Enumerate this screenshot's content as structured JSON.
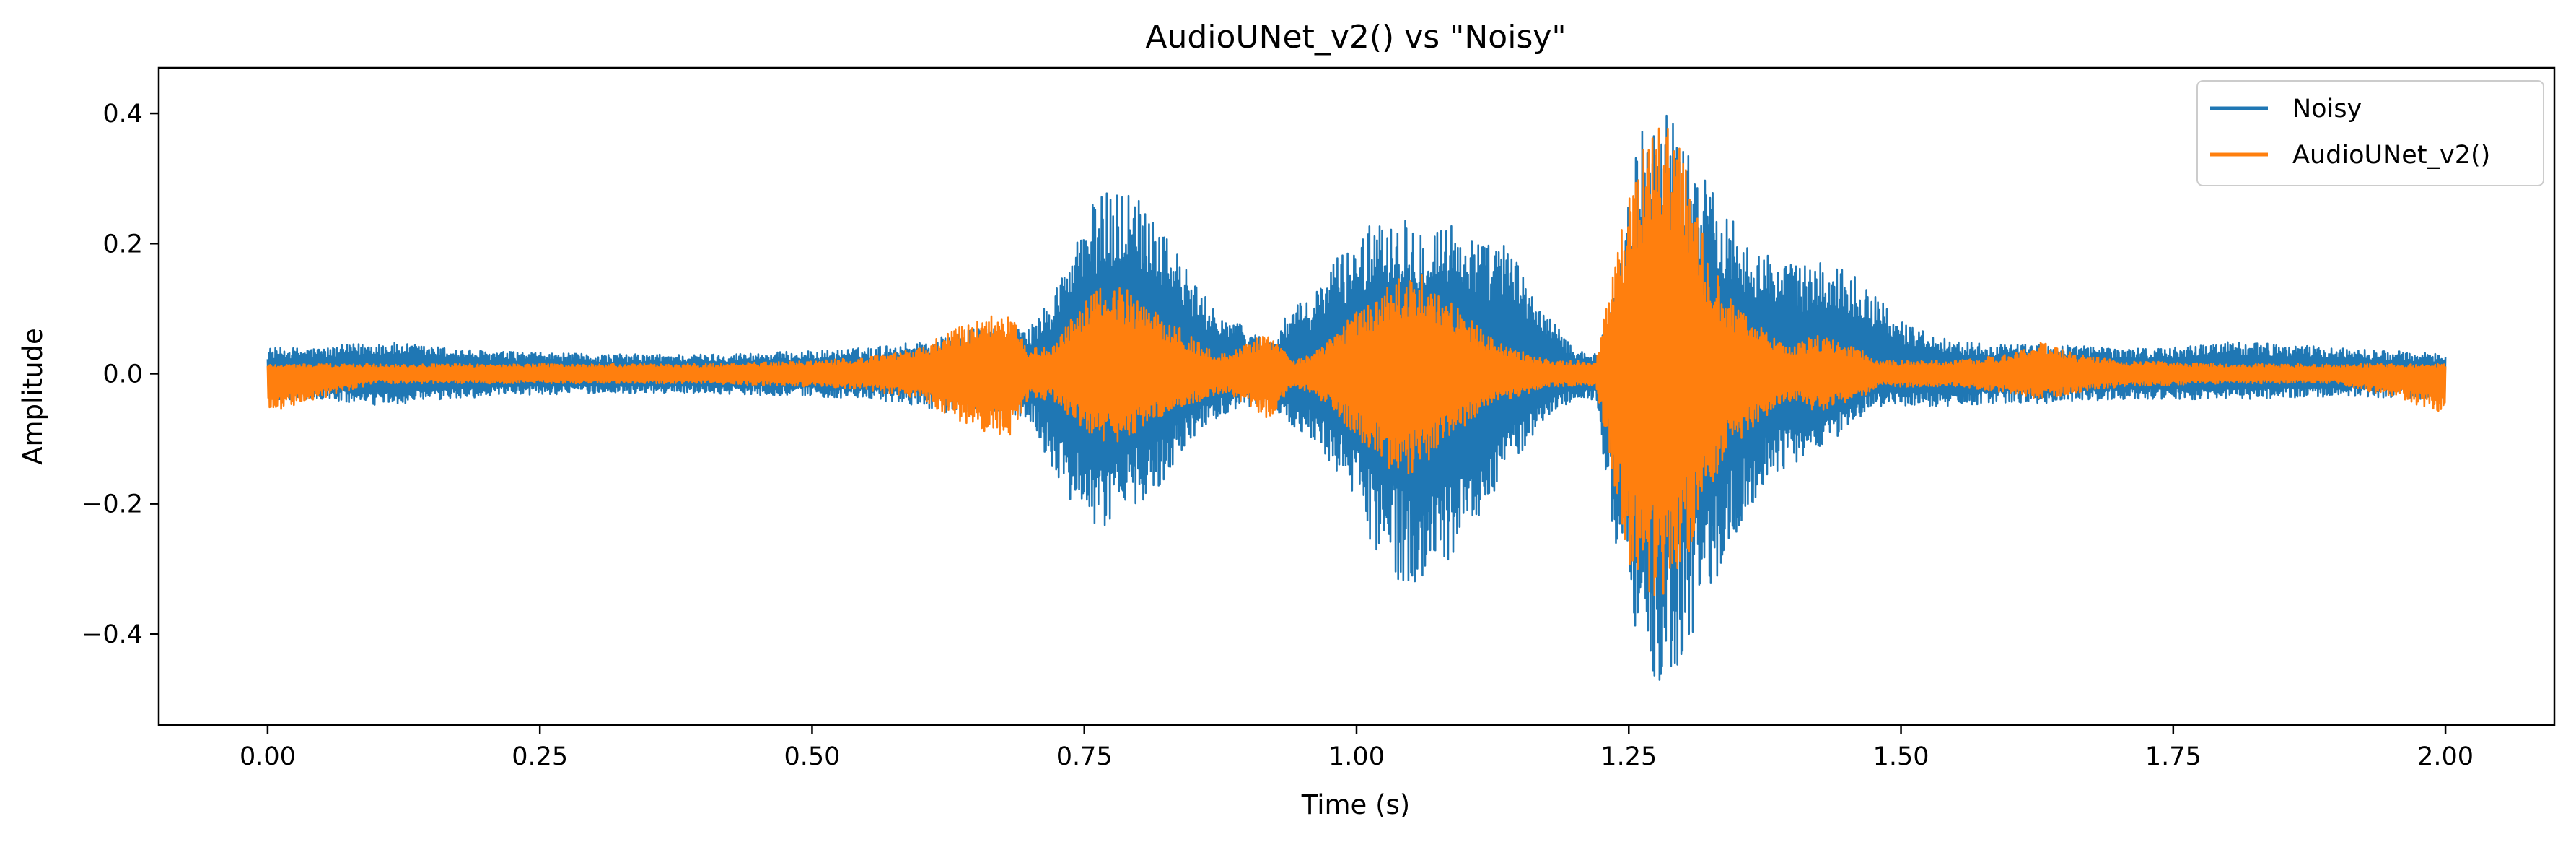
{
  "chart_data": {
    "type": "line",
    "title": "AudioUNet_v2() vs \"Noisy\"",
    "xlabel": "Time (s)",
    "ylabel": "Amplitude",
    "xlim": [
      -0.1,
      2.1
    ],
    "ylim": [
      -0.54,
      0.47
    ],
    "xticks": [
      0.0,
      0.25,
      0.5,
      0.75,
      1.0,
      1.25,
      1.5,
      1.75,
      2.0
    ],
    "xtick_labels": [
      "0.00",
      "0.25",
      "0.50",
      "0.75",
      "1.00",
      "1.25",
      "1.50",
      "1.75",
      "2.00"
    ],
    "yticks": [
      -0.4,
      -0.2,
      0.0,
      0.2,
      0.4
    ],
    "ytick_labels": [
      "−0.4",
      "−0.2",
      "0.0",
      "0.2",
      "0.4"
    ],
    "grid": false,
    "legend_position": "top-right",
    "series": [
      {
        "name": "Noisy",
        "color": "#1f77b4",
        "envelope": {
          "t": [
            0.0,
            0.05,
            0.1,
            0.2,
            0.3,
            0.4,
            0.5,
            0.55,
            0.6,
            0.65,
            0.7,
            0.72,
            0.74,
            0.76,
            0.78,
            0.8,
            0.82,
            0.84,
            0.86,
            0.88,
            0.9,
            0.92,
            0.94,
            0.96,
            0.98,
            1.0,
            1.02,
            1.04,
            1.06,
            1.08,
            1.1,
            1.12,
            1.14,
            1.16,
            1.18,
            1.2,
            1.22,
            1.24,
            1.26,
            1.28,
            1.3,
            1.32,
            1.34,
            1.36,
            1.38,
            1.4,
            1.42,
            1.44,
            1.46,
            1.48,
            1.5,
            1.55,
            1.6,
            1.65,
            1.7,
            1.75,
            1.8,
            1.9,
            2.0
          ],
          "upper": [
            0.04,
            0.04,
            0.05,
            0.035,
            0.03,
            0.03,
            0.035,
            0.04,
            0.05,
            0.07,
            0.07,
            0.12,
            0.2,
            0.27,
            0.29,
            0.28,
            0.25,
            0.17,
            0.12,
            0.09,
            0.07,
            0.05,
            0.1,
            0.12,
            0.18,
            0.2,
            0.25,
            0.25,
            0.23,
            0.24,
            0.22,
            0.2,
            0.2,
            0.13,
            0.08,
            0.04,
            0.03,
            0.15,
            0.38,
            0.42,
            0.37,
            0.3,
            0.25,
            0.22,
            0.18,
            0.17,
            0.17,
            0.17,
            0.15,
            0.12,
            0.08,
            0.05,
            0.045,
            0.045,
            0.04,
            0.04,
            0.05,
            0.04,
            0.03
          ],
          "lower": [
            -0.04,
            -0.04,
            -0.05,
            -0.035,
            -0.03,
            -0.03,
            -0.035,
            -0.04,
            -0.05,
            -0.07,
            -0.07,
            -0.15,
            -0.21,
            -0.24,
            -0.23,
            -0.2,
            -0.17,
            -0.12,
            -0.08,
            -0.06,
            -0.05,
            -0.05,
            -0.08,
            -0.1,
            -0.15,
            -0.2,
            -0.29,
            -0.32,
            -0.33,
            -0.3,
            -0.25,
            -0.2,
            -0.15,
            -0.1,
            -0.06,
            -0.04,
            -0.04,
            -0.32,
            -0.42,
            -0.49,
            -0.44,
            -0.35,
            -0.28,
            -0.22,
            -0.16,
            -0.14,
            -0.12,
            -0.1,
            -0.07,
            -0.05,
            -0.05,
            -0.05,
            -0.045,
            -0.045,
            -0.04,
            -0.04,
            -0.04,
            -0.035,
            -0.04
          ]
        }
      },
      {
        "name": "AudioUNet_v2()",
        "color": "#ff7f0e",
        "envelope": {
          "t": [
            0.0,
            0.1,
            0.2,
            0.3,
            0.4,
            0.5,
            0.55,
            0.6,
            0.63,
            0.66,
            0.68,
            0.7,
            0.72,
            0.74,
            0.76,
            0.78,
            0.8,
            0.82,
            0.84,
            0.86,
            0.88,
            0.9,
            0.92,
            0.94,
            0.96,
            0.98,
            1.0,
            1.02,
            1.04,
            1.06,
            1.08,
            1.1,
            1.12,
            1.14,
            1.16,
            1.18,
            1.2,
            1.22,
            1.24,
            1.26,
            1.28,
            1.3,
            1.32,
            1.34,
            1.36,
            1.38,
            1.4,
            1.42,
            1.44,
            1.46,
            1.48,
            1.5,
            1.55,
            1.6,
            1.63,
            1.66,
            1.7,
            1.8,
            1.9,
            2.0
          ],
          "upper": [
            0.015,
            0.015,
            0.015,
            0.015,
            0.015,
            0.02,
            0.025,
            0.04,
            0.07,
            0.09,
            0.1,
            0.04,
            0.04,
            0.09,
            0.13,
            0.14,
            0.12,
            0.09,
            0.07,
            0.04,
            0.03,
            0.05,
            0.07,
            0.02,
            0.03,
            0.06,
            0.1,
            0.12,
            0.15,
            0.16,
            0.12,
            0.09,
            0.06,
            0.04,
            0.03,
            0.02,
            0.02,
            0.02,
            0.2,
            0.34,
            0.39,
            0.35,
            0.2,
            0.12,
            0.09,
            0.06,
            0.04,
            0.06,
            0.05,
            0.04,
            0.02,
            0.02,
            0.02,
            0.03,
            0.05,
            0.03,
            0.02,
            0.015,
            0.015,
            0.015
          ],
          "lower": [
            -0.06,
            -0.015,
            -0.015,
            -0.015,
            -0.015,
            -0.02,
            -0.025,
            -0.04,
            -0.07,
            -0.09,
            -0.1,
            -0.04,
            -0.04,
            -0.07,
            -0.1,
            -0.11,
            -0.09,
            -0.07,
            -0.05,
            -0.04,
            -0.03,
            -0.05,
            -0.07,
            -0.02,
            -0.03,
            -0.06,
            -0.1,
            -0.13,
            -0.16,
            -0.15,
            -0.1,
            -0.08,
            -0.05,
            -0.04,
            -0.03,
            -0.02,
            -0.02,
            -0.02,
            -0.2,
            -0.37,
            -0.35,
            -0.3,
            -0.2,
            -0.12,
            -0.09,
            -0.06,
            -0.04,
            -0.06,
            -0.05,
            -0.04,
            -0.02,
            -0.02,
            -0.02,
            -0.03,
            -0.04,
            -0.03,
            -0.02,
            -0.015,
            -0.015,
            -0.06
          ]
        }
      }
    ]
  }
}
